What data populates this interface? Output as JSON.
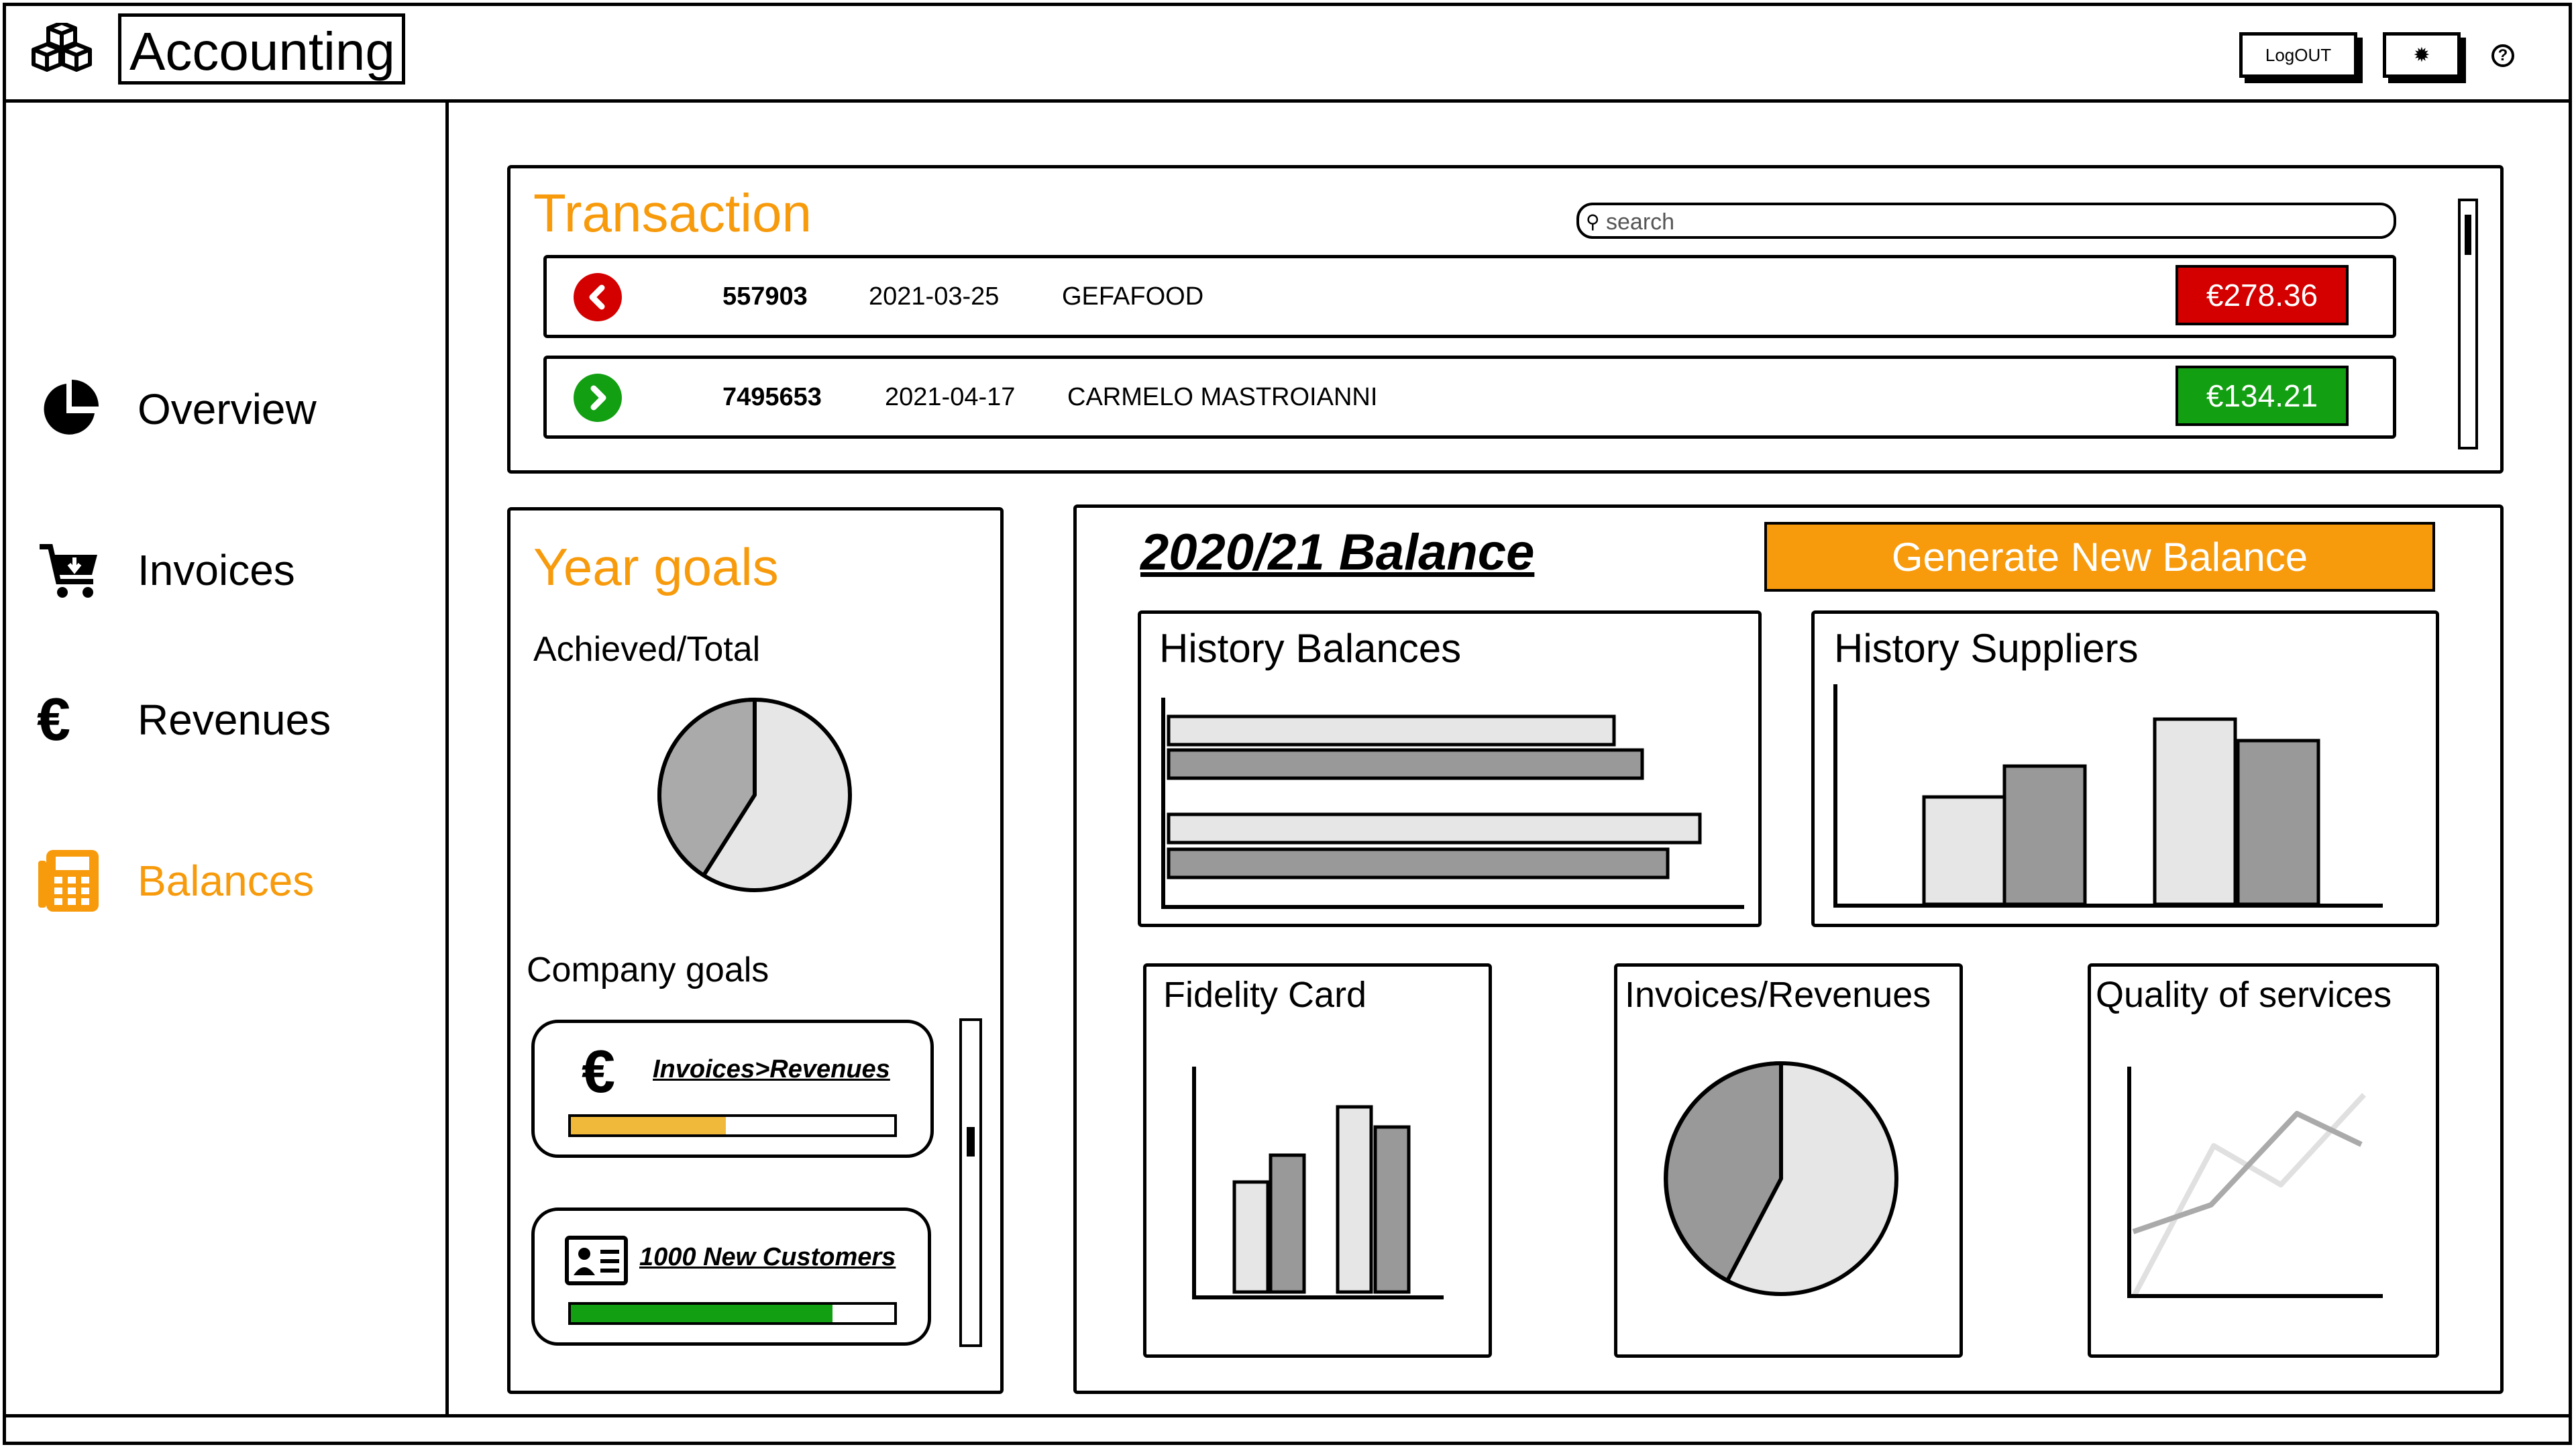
{
  "app": {
    "title": "Accounting",
    "logo_icon": "cubes-icon"
  },
  "header": {
    "logout_label": "LogOUT",
    "settings_icon": "gear-icon",
    "help_icon": "help-icon"
  },
  "sidebar": {
    "active_color": "#f79a0b",
    "items": [
      {
        "label": "Overview",
        "icon": "pie-chart-icon",
        "active": false
      },
      {
        "label": "Invoices",
        "icon": "cart-icon",
        "active": false
      },
      {
        "label": "Revenues",
        "icon": "euro-icon",
        "active": false
      },
      {
        "label": "Balances",
        "icon": "calculator-icon",
        "active": true
      }
    ]
  },
  "transactions": {
    "title": "Transaction",
    "search_placeholder": "search",
    "rows": [
      {
        "direction": "out",
        "icon": "chevron-left-icon",
        "id": "557903",
        "date": "2021-03-25",
        "party": "GEFAFOOD",
        "amount": "€278.36",
        "color": "#d40000"
      },
      {
        "direction": "in",
        "icon": "chevron-right-icon",
        "id": "7495653",
        "date": "2021-04-17",
        "party": "CARMELO MASTROIANNI",
        "amount": "€134.21",
        "color": "#129f12"
      }
    ]
  },
  "year_goals": {
    "title": "Year goals",
    "achieved_label": "Achieved/Total",
    "achieved_fraction": 0.41,
    "company_goals_label": "Company goals",
    "goals": [
      {
        "label": "Invoices>Revenues",
        "icon": "euro-icon",
        "progress": 0.48,
        "color": "#f0b93a"
      },
      {
        "label": "1000 New Customers",
        "icon": "id-card-icon",
        "progress": 0.81,
        "color": "#129f12"
      }
    ]
  },
  "balance": {
    "title": "2020/21 Balance",
    "generate_label": "Generate New Balance",
    "accent": "#f79a0b"
  },
  "widgets": {
    "history_balances": {
      "title": "History Balances"
    },
    "history_suppliers": {
      "title": "History Suppliers"
    },
    "fidelity_card": {
      "title": "Fidelity Card"
    },
    "invoices_revenues": {
      "title": "Invoices/Revenues"
    },
    "quality_services": {
      "title": "Quality of services"
    }
  }
}
